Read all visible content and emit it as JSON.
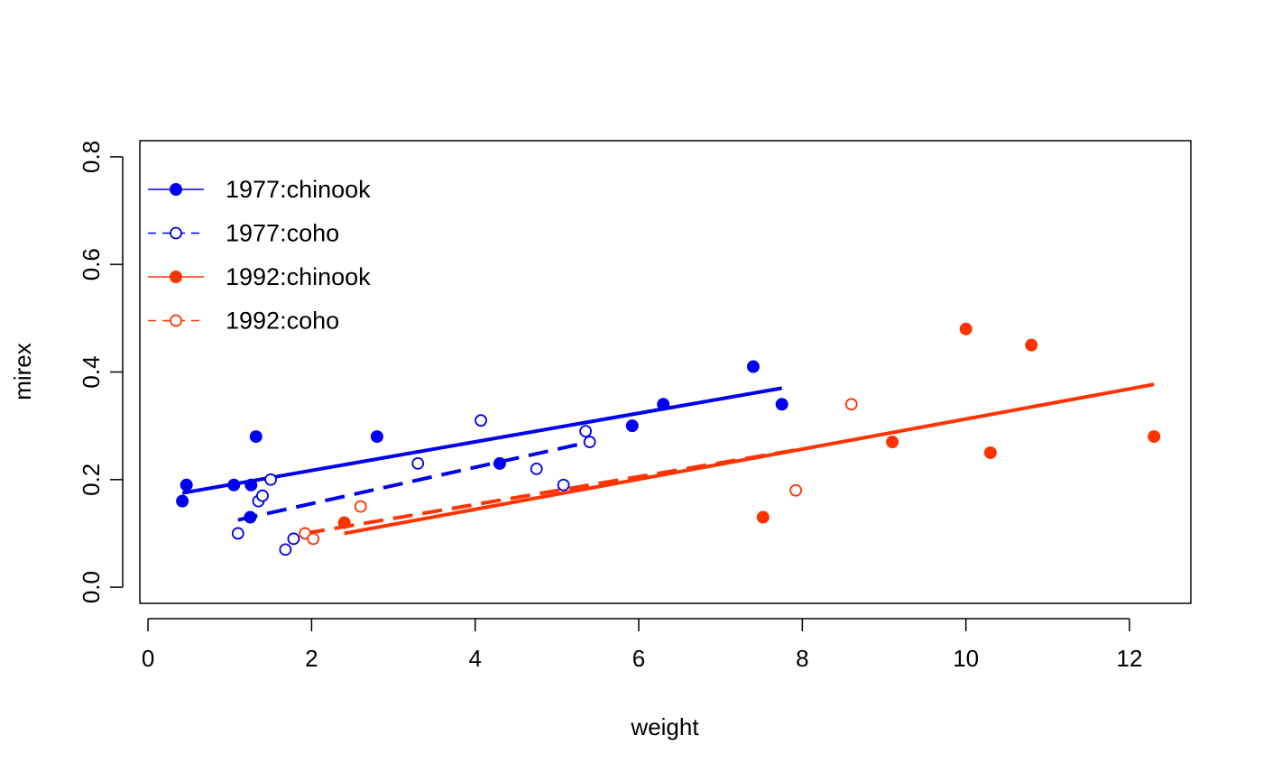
{
  "chart_data": {
    "type": "scatter",
    "xlabel": "weight",
    "ylabel": "mirex",
    "xlim": [
      -0.1,
      12.75
    ],
    "ylim": [
      -0.03,
      0.83
    ],
    "x_ticks": [
      0,
      2,
      4,
      6,
      8,
      10,
      12
    ],
    "y_ticks": [
      0.0,
      0.2,
      0.4,
      0.6,
      0.8
    ],
    "x_tick_labels": [
      "0",
      "2",
      "4",
      "6",
      "8",
      "10",
      "12"
    ],
    "y_tick_labels": [
      "0.0",
      "0.2",
      "0.4",
      "0.6",
      "0.8"
    ],
    "grid": false,
    "legend_position": "top-left",
    "series": [
      {
        "name": "1977:chinook",
        "color": "#0000ee",
        "marker": "filled-circle",
        "line_style": "solid",
        "points": [
          [
            0.42,
            0.16
          ],
          [
            0.47,
            0.19
          ],
          [
            1.05,
            0.19
          ],
          [
            1.25,
            0.13
          ],
          [
            1.26,
            0.19
          ],
          [
            1.32,
            0.28
          ],
          [
            2.8,
            0.28
          ],
          [
            4.3,
            0.23
          ],
          [
            5.92,
            0.3
          ],
          [
            6.3,
            0.34
          ],
          [
            7.4,
            0.41
          ],
          [
            7.75,
            0.34
          ]
        ],
        "fit": [
          [
            0.42,
            0.175
          ],
          [
            7.75,
            0.37
          ]
        ]
      },
      {
        "name": "1977:coho",
        "color": "#0000ee",
        "marker": "open-circle",
        "line_style": "dashed",
        "points": [
          [
            1.1,
            0.1
          ],
          [
            1.35,
            0.16
          ],
          [
            1.4,
            0.17
          ],
          [
            1.5,
            0.2
          ],
          [
            1.68,
            0.07
          ],
          [
            1.78,
            0.09
          ],
          [
            3.3,
            0.23
          ],
          [
            4.07,
            0.31
          ],
          [
            4.75,
            0.22
          ],
          [
            5.08,
            0.19
          ],
          [
            5.35,
            0.29
          ],
          [
            5.4,
            0.27
          ]
        ],
        "fit": [
          [
            1.1,
            0.125
          ],
          [
            5.4,
            0.27
          ]
        ]
      },
      {
        "name": "1992:chinook",
        "color": "#ff3300",
        "marker": "filled-circle",
        "line_style": "solid",
        "points": [
          [
            2.4,
            0.12
          ],
          [
            7.52,
            0.13
          ],
          [
            9.1,
            0.27
          ],
          [
            10.0,
            0.48
          ],
          [
            10.3,
            0.25
          ],
          [
            10.8,
            0.45
          ],
          [
            12.3,
            0.28
          ]
        ],
        "fit": [
          [
            2.4,
            0.1
          ],
          [
            12.3,
            0.377
          ]
        ]
      },
      {
        "name": "1992:coho",
        "color": "#ff3300",
        "marker": "open-circle",
        "line_style": "dashed",
        "points": [
          [
            1.92,
            0.1
          ],
          [
            2.02,
            0.09
          ],
          [
            2.6,
            0.15
          ],
          [
            7.92,
            0.18
          ],
          [
            8.6,
            0.34
          ]
        ],
        "fit": [
          [
            1.92,
            0.1
          ],
          [
            7.92,
            0.255
          ]
        ]
      }
    ]
  }
}
